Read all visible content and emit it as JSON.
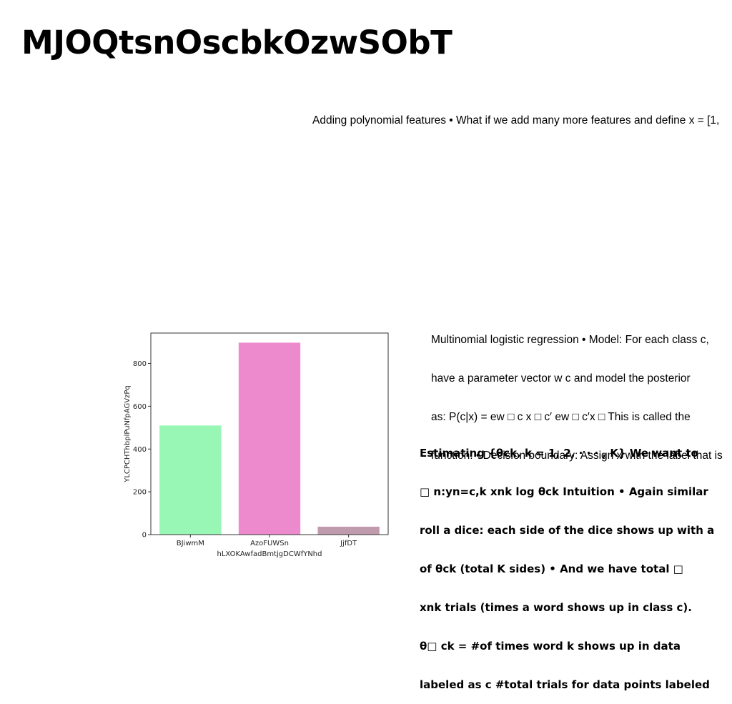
{
  "page": {
    "title": "MJOQtsnOscbkOzwSObT"
  },
  "text_line": "Adding polynomial features • What if we add many more features and define x = [1,",
  "block1": {
    "lines": [
      "Multinomial logistic regression • Model: For each class c,",
      "have a parameter vector w c and model the posterior",
      "as: P(c|x) = ew □ c x □ c′ ew □ c′x □ This is called the",
      "function. • Decision boundary: Assign x with the label that is"
    ]
  },
  "block2": {
    "lines": [
      "Estimating {θck, k = 1, 2, · · · , K} We want to",
      "□ n:yn=c,k xnk log θck Intuition • Again similar",
      "roll a dice: each side of the dice shows up with a",
      "of θck (total K sides) • And we have total □",
      "xnk trials (times a word shows up in class c).",
      "θ□ ck = #of times word k shows up in data",
      "labeled as c #total trials for data points labeled"
    ]
  },
  "chart_data": {
    "type": "bar",
    "categories": [
      "BJiwmM",
      "AzoFUWSn",
      "JjfDT"
    ],
    "values": [
      510,
      897,
      37
    ],
    "colors": [
      "#99f7b5",
      "#ed89cd",
      "#c09aad"
    ],
    "xlabel": "hLXOKAwfadBmtjgDCWfYNhd",
    "ylabel": "YLCPCHThbplPuNfpAGVzPq",
    "ylim": [
      0,
      942
    ],
    "yticks": [
      0,
      200,
      400,
      600,
      800
    ],
    "grid": false,
    "legend": "none"
  }
}
